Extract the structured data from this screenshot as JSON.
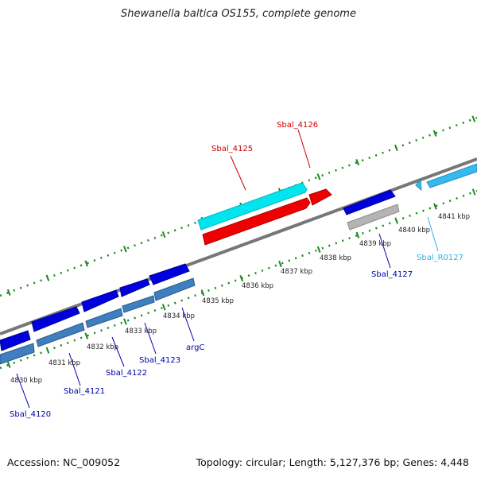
{
  "title": "Shewanella baltica OS155, complete genome",
  "footer": {
    "accession": "Accession: NC_009052",
    "topology": "Topology: circular; Length: 5,127,376 bp; Genes: 4,448"
  },
  "colors": {
    "backbone": "#777777",
    "tick": "#1a8a1a",
    "forward_cds": "#00e5ee",
    "reverse_cds": "#ee0000",
    "cds_blue": "#0000dd",
    "cds_steel": "#3f7fbf",
    "cds_grey": "#b4b4b4",
    "cds_light": "#35b9ef",
    "label_red": "#cc0000",
    "label_blue": "#0000aa",
    "label_cyan": "#30b0e0"
  },
  "tick_labels": [
    "4830 kbp",
    "4831 kbp",
    "4832 kbp",
    "4833 kbp",
    "4834 kbp",
    "4835 kbp",
    "4836 kbp",
    "4837 kbp",
    "4838 kbp",
    "4839 kbp",
    "4840 kbp",
    "4841 kbp"
  ],
  "gene_labels": {
    "sbal_4126": "Sbal_4126",
    "sbal_4125": "Sbal_4125",
    "sbal_4127": "Sbal_4127",
    "sbal_r0127": "Sbal_R0127",
    "argc": "argC",
    "sbal_4123": "Sbal_4123",
    "sbal_4122": "Sbal_4122",
    "sbal_4121": "Sbal_4121",
    "sbal_4120": "Sbal_4120"
  }
}
